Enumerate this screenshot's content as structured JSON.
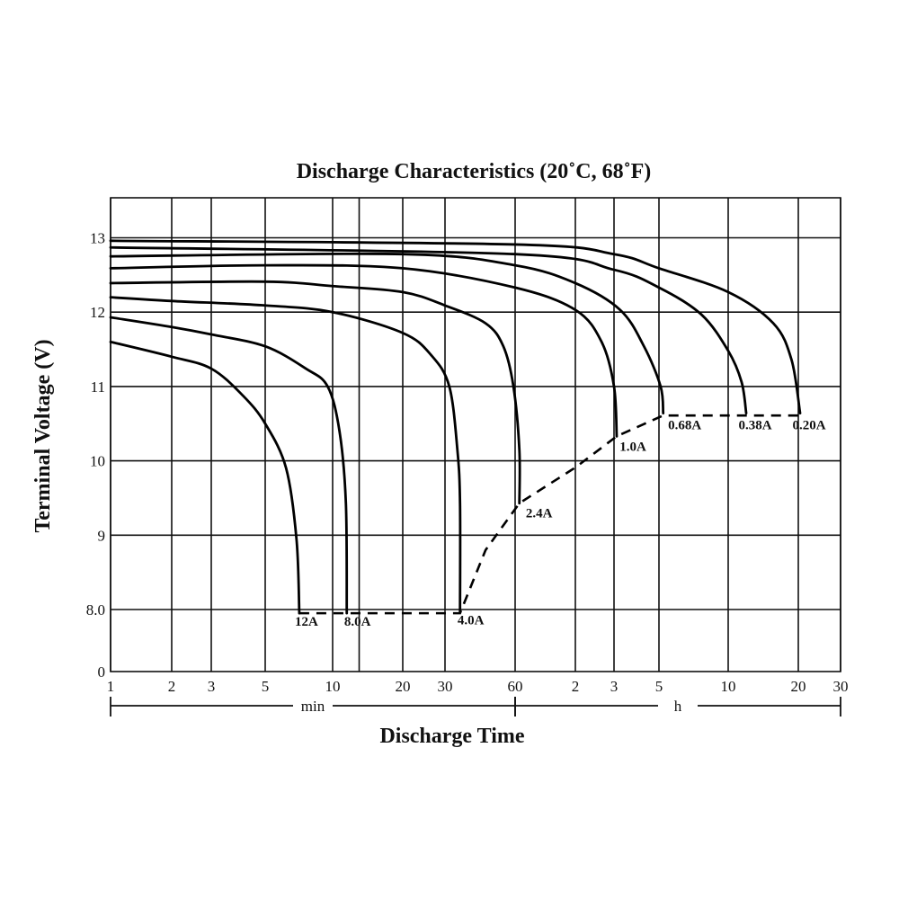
{
  "chart_data": {
    "type": "line",
    "title": "Discharge Characteristics (20˚C, 68˚F)",
    "xlabel": "Discharge Time",
    "ylabel": "Terminal Voltage (V)",
    "x_scale": "log",
    "x_unit_ranges": [
      {
        "label": "min",
        "from_min": 1,
        "to_min": 60
      },
      {
        "label": "h",
        "from_min": 60,
        "to_min": 1800
      }
    ],
    "x_ticks": [
      {
        "value_min": 1,
        "label": "1"
      },
      {
        "value_min": 2,
        "label": "2"
      },
      {
        "value_min": 3,
        "label": "3"
      },
      {
        "value_min": 5,
        "label": "5"
      },
      {
        "value_min": 10,
        "label": "10"
      },
      {
        "value_min": 20,
        "label": "20"
      },
      {
        "value_min": 30,
        "label": "30"
      },
      {
        "value_min": 60,
        "label": "60"
      },
      {
        "value_min": 120,
        "label": "2"
      },
      {
        "value_min": 180,
        "label": "3"
      },
      {
        "value_min": 300,
        "label": "5"
      },
      {
        "value_min": 600,
        "label": "10"
      },
      {
        "value_min": 1200,
        "label": "20"
      },
      {
        "value_min": 1800,
        "label": "30"
      }
    ],
    "minor_gridlines_min": [
      13
    ],
    "y_ticks": [
      {
        "value": 0,
        "label": "0"
      },
      {
        "value": 8,
        "label": "8.0"
      },
      {
        "value": 9,
        "label": "9"
      },
      {
        "value": 10,
        "label": "10"
      },
      {
        "value": 11,
        "label": "11"
      },
      {
        "value": 12,
        "label": "12"
      },
      {
        "value": 13,
        "label": "13"
      }
    ],
    "y_axis_break": "between 0 and 8.0",
    "ylim": [
      8,
      13.55
    ],
    "xlim_min": [
      1,
      1800
    ],
    "grid": true,
    "series": [
      {
        "name": "12A",
        "x_min": [
          1,
          2,
          3,
          4.04,
          5,
          6.2,
          6.9,
          7.1
        ],
        "y_v": [
          11.6,
          11.4,
          11.24,
          10.88,
          10.5,
          9.9,
          8.94,
          7.95
        ]
      },
      {
        "name": "8.0A",
        "x_min": [
          1,
          2,
          3,
          5,
          7.6,
          9.5,
          10.7,
          11.4,
          11.5
        ],
        "y_v": [
          11.93,
          11.8,
          11.7,
          11.54,
          11.24,
          11.0,
          10.4,
          9.43,
          7.95
        ]
      },
      {
        "name": "4.0A",
        "x_min": [
          1,
          2,
          5,
          10,
          20,
          26.3,
          31.3,
          33.9,
          34.8,
          34.8
        ],
        "y_v": [
          12.2,
          12.15,
          12.09,
          12.0,
          11.72,
          11.42,
          11.0,
          10.15,
          9.43,
          7.97
        ]
      },
      {
        "name": "2.4A",
        "x_min": [
          1,
          5,
          10,
          20,
          30,
          44.8,
          53.4,
          59,
          63,
          63
        ],
        "y_v": [
          12.39,
          12.41,
          12.35,
          12.27,
          12.09,
          11.85,
          11.54,
          11.0,
          10.15,
          9.43
        ]
      },
      {
        "name": "1.0A",
        "x_min": [
          1,
          5,
          20,
          60,
          120,
          158,
          180,
          185.6
        ],
        "y_v": [
          12.59,
          12.63,
          12.59,
          12.33,
          12.03,
          11.6,
          11.0,
          10.33
        ]
      },
      {
        "name": "0.68A",
        "x_min": [
          1,
          20,
          60,
          120,
          193,
          253,
          305,
          313
        ],
        "y_v": [
          12.75,
          12.78,
          12.63,
          12.39,
          12.03,
          11.54,
          11.0,
          10.64
        ]
      },
      {
        "name": "0.38A",
        "x_min": [
          1,
          60,
          180,
          300,
          458,
          600,
          685,
          717
        ],
        "y_v": [
          12.87,
          12.78,
          12.57,
          12.33,
          11.97,
          11.48,
          11.06,
          10.64
        ]
      },
      {
        "name": "0.20A",
        "x_min": [
          1,
          60,
          180,
          300,
          600,
          937,
          1122,
          1221
        ],
        "y_v": [
          12.96,
          12.91,
          12.78,
          12.59,
          12.27,
          11.85,
          11.36,
          10.64
        ]
      }
    ],
    "cutoff_line": {
      "style": "dashed",
      "x_min": [
        7.1,
        34.8,
        44.8,
        63,
        120,
        185.6,
        313,
        1221
      ],
      "y_v": [
        7.95,
        7.95,
        8.8,
        9.43,
        9.91,
        10.33,
        10.61,
        10.61
      ]
    }
  }
}
